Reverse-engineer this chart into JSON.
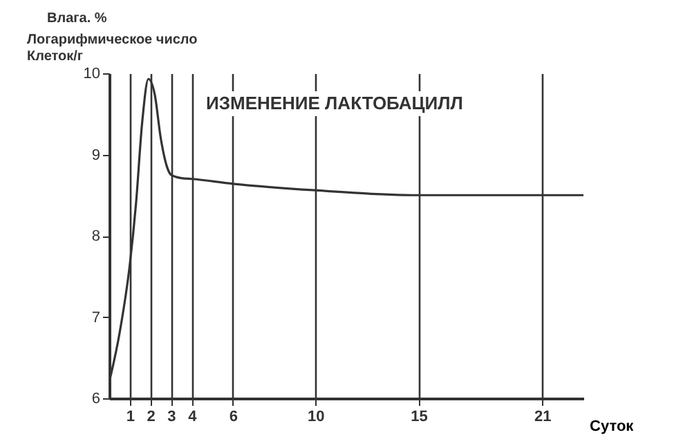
{
  "chart_data": {
    "type": "line",
    "title": "ИЗМЕНЕНИЕ ЛАКТОБАЦИЛЛ",
    "xlabel": "Суток",
    "ylabel": "Логарифмическое число Клеток/г",
    "annotations": [
      "Влага. %"
    ],
    "x": [
      0,
      0.5,
      1,
      1.3,
      1.6,
      1.9,
      2.2,
      2.5,
      2.8,
      3,
      3.5,
      4,
      6,
      10,
      15,
      21,
      23
    ],
    "series": [
      {
        "color": "#333333",
        "values": [
          6.2,
          6.8,
          7.65,
          8.4,
          9.4,
          9.93,
          9.75,
          9.2,
          8.85,
          8.75,
          8.71,
          8.7,
          8.64,
          8.56,
          8.5,
          8.5,
          8.5
        ]
      }
    ],
    "xlim": [
      0,
      23
    ],
    "xticks": [
      1,
      2,
      3,
      4,
      6,
      10,
      15,
      21
    ],
    "ylim": [
      6,
      10
    ],
    "yticks": [
      6,
      7,
      8,
      9,
      10
    ],
    "grid": "x",
    "marker": "none",
    "line_style": "solid"
  }
}
